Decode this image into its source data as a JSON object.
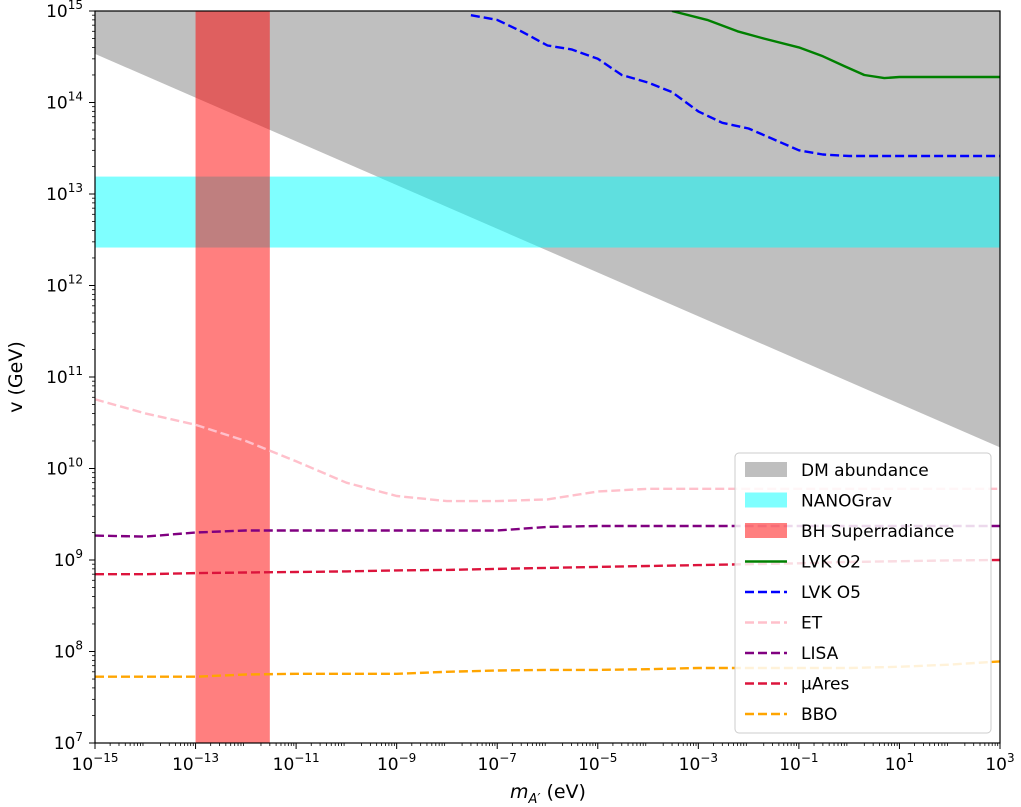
{
  "chart_data": {
    "type": "line",
    "xscale": "log",
    "yscale": "log",
    "xlim": [
      1e-15,
      1000
    ],
    "ylim": [
      10000000.0,
      1000000000000000.0
    ],
    "xlabel": {
      "main": "m",
      "sub": "A′",
      "unit": " (eV)"
    },
    "ylabel": "v (GeV)",
    "grid": false,
    "legend_placement": "lower-right",
    "xticks": [
      {
        "base": "10",
        "exp": "−15",
        "value": -15
      },
      {
        "base": "10",
        "exp": "−13",
        "value": -13
      },
      {
        "base": "10",
        "exp": "−11",
        "value": -11
      },
      {
        "base": "10",
        "exp": "−9",
        "value": -9
      },
      {
        "base": "10",
        "exp": "−7",
        "value": -7
      },
      {
        "base": "10",
        "exp": "−5",
        "value": -5
      },
      {
        "base": "10",
        "exp": "−3",
        "value": -3
      },
      {
        "base": "10",
        "exp": "−1",
        "value": -1
      },
      {
        "base": "10",
        "exp": "1",
        "value": 1
      },
      {
        "base": "10",
        "exp": "3",
        "value": 3
      }
    ],
    "yticks": [
      {
        "base": "10",
        "exp": "7",
        "value": 7
      },
      {
        "base": "10",
        "exp": "8",
        "value": 8
      },
      {
        "base": "10",
        "exp": "9",
        "value": 9
      },
      {
        "base": "10",
        "exp": "10",
        "value": 10
      },
      {
        "base": "10",
        "exp": "11",
        "value": 11
      },
      {
        "base": "10",
        "exp": "12",
        "value": 12
      },
      {
        "base": "10",
        "exp": "13",
        "value": 13
      },
      {
        "base": "10",
        "exp": "14",
        "value": 14
      },
      {
        "base": "10",
        "exp": "15",
        "value": 15
      }
    ],
    "regions": [
      {
        "name": "DM abundance",
        "kind": "above-line",
        "color": "#bfbfbf",
        "x": [
          1e-15,
          1000
        ],
        "y_lower": [
          340000000000000.0,
          17000000000.0
        ]
      },
      {
        "name": "NANOGrav",
        "kind": "hband",
        "color": "#00ffff",
        "opacity": 0.5,
        "y": [
          2600000000000.0,
          15500000000000.0
        ]
      },
      {
        "name": "BH Superradiance",
        "kind": "vband",
        "color": "#ff0000",
        "opacity": 0.5,
        "x": [
          1e-13,
          3e-12
        ]
      }
    ],
    "series": [
      {
        "name": "LVK O2",
        "color": "#008000",
        "dash": "solid",
        "x": [
          0.0003,
          0.0015,
          0.006,
          0.02,
          0.1,
          0.3,
          0.8,
          2,
          5,
          10,
          100,
          1000
        ],
        "y": [
          1000000000000000.0,
          800000000000000.0,
          600000000000000.0,
          500000000000000.0,
          400000000000000.0,
          320000000000000.0,
          250000000000000.0,
          200000000000000.0,
          185000000000000.0,
          190000000000000.0,
          190000000000000.0,
          190000000000000.0
        ]
      },
      {
        "name": "LVK O5",
        "color": "#0000ff",
        "dash": "dashed",
        "x": [
          3e-08,
          1e-07,
          3e-07,
          1e-06,
          3e-06,
          1e-05,
          3e-05,
          0.0001,
          0.0003,
          0.001,
          0.003,
          0.01,
          0.03,
          0.1,
          0.3,
          1,
          10,
          1000
        ],
        "y": [
          900000000000000.0,
          800000000000000.0,
          600000000000000.0,
          420000000000000.0,
          380000000000000.0,
          300000000000000.0,
          200000000000000.0,
          165000000000000.0,
          130000000000000.0,
          80000000000000.0,
          60000000000000.0,
          52000000000000.0,
          40000000000000.0,
          30000000000000.0,
          27000000000000.0,
          26000000000000.0,
          26000000000000.0,
          26000000000000.0
        ]
      },
      {
        "name": "ET",
        "color": "#ffc0cb",
        "dash": "dashed",
        "x": [
          1e-15,
          1e-14,
          1e-13,
          1e-12,
          1e-11,
          1e-10,
          1e-09,
          1e-08,
          1e-07,
          1e-06,
          1e-05,
          0.0001,
          0.001,
          0.01,
          0.1,
          1,
          10,
          100,
          1000
        ],
        "y": [
          57000000000.0,
          40000000000.0,
          30000000000.0,
          20000000000.0,
          12000000000.0,
          7000000000.0,
          5000000000.0,
          4400000000.0,
          4400000000.0,
          4600000000.0,
          5600000000.0,
          6000000000.0,
          6000000000.0,
          6000000000.0,
          6000000000.0,
          6000000000.0,
          6000000000.0,
          6000000000.0,
          6000000000.0
        ]
      },
      {
        "name": "LISA",
        "color": "#800080",
        "dash": "dashed",
        "x": [
          1e-15,
          1e-14,
          1e-13,
          1e-12,
          1e-11,
          1e-10,
          1e-09,
          1e-08,
          1e-07,
          1e-06,
          1e-05,
          0.0001,
          0.001,
          0.01,
          0.1,
          1,
          10,
          100,
          1000
        ],
        "y": [
          1850000000.0,
          1800000000.0,
          2000000000.0,
          2100000000.0,
          2100000000.0,
          2100000000.0,
          2100000000.0,
          2100000000.0,
          2100000000.0,
          2300000000.0,
          2350000000.0,
          2350000000.0,
          2350000000.0,
          2350000000.0,
          2350000000.0,
          2350000000.0,
          2350000000.0,
          2350000000.0,
          2350000000.0
        ]
      },
      {
        "name": "μAres",
        "color": "#dc143c",
        "dash": "dashed",
        "x": [
          1e-15,
          1e-14,
          1e-13,
          1e-12,
          1e-11,
          1e-10,
          1e-09,
          1e-08,
          1e-07,
          1e-06,
          1e-05,
          0.0001,
          0.001,
          0.01,
          0.1,
          1,
          10,
          100,
          1000
        ],
        "y": [
          700000000.0,
          700000000.0,
          720000000.0,
          730000000.0,
          740000000.0,
          750000000.0,
          770000000.0,
          780000000.0,
          800000000.0,
          820000000.0,
          840000000.0,
          860000000.0,
          880000000.0,
          900000000.0,
          920000000.0,
          950000000.0,
          970000000.0,
          990000000.0,
          1000000000.0
        ]
      },
      {
        "name": "BBO",
        "color": "#ffa500",
        "dash": "dashed",
        "x": [
          1e-15,
          1e-14,
          1e-13,
          1e-12,
          1e-11,
          1e-10,
          1e-09,
          1e-08,
          1e-07,
          1e-06,
          1e-05,
          0.0001,
          0.001,
          0.01,
          0.1,
          1,
          10,
          100,
          1000
        ],
        "y": [
          53000000.0,
          53000000.0,
          53000000.0,
          56000000.0,
          57000000.0,
          57000000.0,
          57000000.0,
          60000000.0,
          62000000.0,
          63000000.0,
          63000000.0,
          64000000.0,
          66000000.0,
          66000000.0,
          66000000.0,
          66000000.0,
          68000000.0,
          72000000.0,
          78000000.0
        ]
      }
    ],
    "legend": [
      {
        "label": "DM abundance",
        "kind": "patch",
        "color": "#bfbfbf",
        "opacity": 1
      },
      {
        "label": "NANOGrav",
        "kind": "patch",
        "color": "#00ffff",
        "opacity": 0.5
      },
      {
        "label": "BH Superradiance",
        "kind": "patch",
        "color": "#ff0000",
        "opacity": 0.5
      },
      {
        "label": "LVK O2",
        "kind": "line",
        "color": "#008000",
        "dash": "solid"
      },
      {
        "label": "LVK O5",
        "kind": "line",
        "color": "#0000ff",
        "dash": "dashed"
      },
      {
        "label": "ET",
        "kind": "line",
        "color": "#ffc0cb",
        "dash": "dashed"
      },
      {
        "label": "LISA",
        "kind": "line",
        "color": "#800080",
        "dash": "dashed"
      },
      {
        "label": "μAres",
        "kind": "line",
        "color": "#dc143c",
        "dash": "dashed"
      },
      {
        "label": "BBO",
        "kind": "line",
        "color": "#ffa500",
        "dash": "dashed"
      }
    ]
  }
}
